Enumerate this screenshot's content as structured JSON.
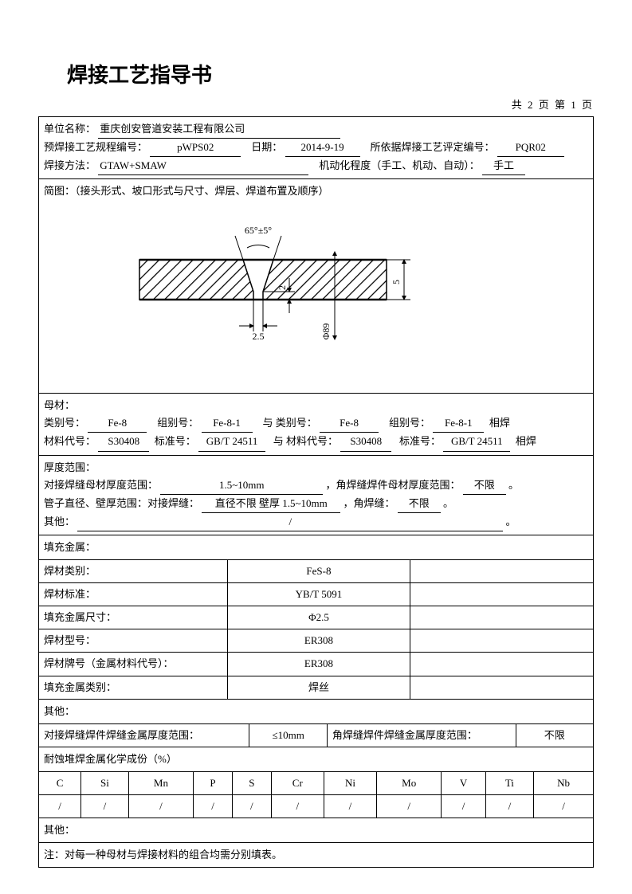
{
  "title": "焊接工艺指导书",
  "page_info": "共 2 页 第 1 页",
  "header": {
    "company_label": "单位名称：",
    "company": "重庆创安管道安装工程有限公司",
    "spec_no_label": "预焊接工艺规程编号：",
    "spec_no": "pWPS02",
    "date_label": "日期：",
    "date": "2014-9-19",
    "pqr_label": "所依据焊接工艺评定编号：",
    "pqr": "PQR02",
    "method_label": "焊接方法：",
    "method": "GTAW+SMAW",
    "mech_label": "机动化程度（手工、机动、自动）：",
    "mech": "手工"
  },
  "diagram": {
    "label": "简图：（接头形式、坡口形式与尺寸、焊层、焊道布置及顺序）",
    "angle": "65°±5°",
    "gap": "2.5",
    "root": "2",
    "thickness": "5",
    "diameter": "Φ89"
  },
  "base_metal": {
    "header": "母材：",
    "cat_label": "类别号：",
    "cat1": "Fe-8",
    "group_label": "组别号：",
    "group1": "Fe-8-1",
    "with_cat_label": "与 类别号：",
    "cat2": "Fe-8",
    "group2": "Fe-8-1",
    "suffix": "相焊",
    "mat_code_label": "材料代号：",
    "mat1": "S30408",
    "std_label": "标准号：",
    "std1": "GB/T 24511",
    "with_mat_label": "与 材料代号：",
    "mat2": "S30408",
    "std2": "GB/T 24511"
  },
  "thickness": {
    "header": "厚度范围：",
    "butt_label": "对接焊缝母材厚度范围：",
    "butt_val": "1.5~10mm",
    "fillet_label": "，角焊缝焊件母材厚度范围：",
    "fillet_val": "不限",
    "fillet_suffix": "。",
    "pipe_label": "管子直径、壁厚范围：对接焊缝：",
    "pipe_val": "直径不限  壁厚 1.5~10mm",
    "pipe_fillet_label": "，角焊缝：",
    "pipe_fillet_val": "不限",
    "pipe_suffix": "。",
    "other_label": "其他：",
    "other_val": "/",
    "other_suffix": "。"
  },
  "filler": {
    "header": "填充金属：",
    "rows": [
      {
        "label": "焊材类别：",
        "v1": "FeS-8",
        "v2": ""
      },
      {
        "label": "焊材标准：",
        "v1": "YB/T 5091",
        "v2": ""
      },
      {
        "label": "填充金属尺寸：",
        "v1": "Φ2.5",
        "v2": ""
      },
      {
        "label": "焊材型号：",
        "v1": "ER308",
        "v2": ""
      },
      {
        "label": "焊材牌号（金属材料代号）：",
        "v1": "ER308",
        "v2": ""
      },
      {
        "label": "填充金属类别：",
        "v1": "焊丝",
        "v2": ""
      }
    ],
    "other": "其他：",
    "butt_range_label": "对接焊缝焊件焊缝金属厚度范围：",
    "butt_range_val": "≤10mm",
    "fillet_range_label": "角焊缝焊件焊缝金属厚度范围：",
    "fillet_range_val": "不限"
  },
  "chem": {
    "header": "耐蚀堆焊金属化学成份（%）",
    "cols": [
      "C",
      "Si",
      "Mn",
      "P",
      "S",
      "Cr",
      "Ni",
      "Mo",
      "V",
      "Ti",
      "Nb"
    ],
    "vals": [
      "/",
      "/",
      "/",
      "/",
      "/",
      "/",
      "/",
      "/",
      "/",
      "/",
      "/"
    ]
  },
  "footer": {
    "other": "其他：",
    "note": "注：对每一种母材与焊接材料的组合均需分别填表。"
  },
  "style": {
    "hatch_color": "#000000",
    "line_color": "#000000"
  }
}
